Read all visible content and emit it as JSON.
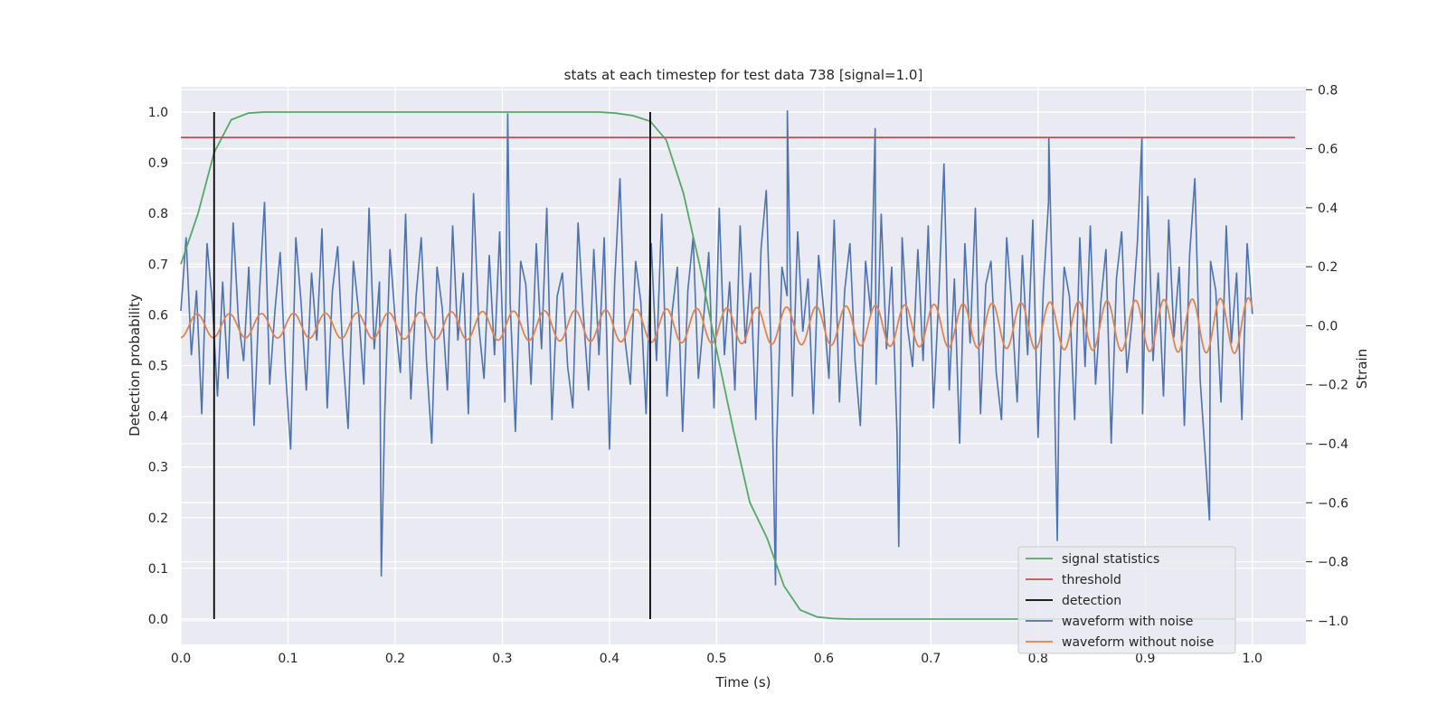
{
  "chart_data": {
    "type": "line",
    "title": "stats at each timestep for test data 738 [signal=1.0]",
    "xlabel": "Time (s)",
    "ylabel_left": "Detection probability",
    "ylabel_right": "Strain",
    "xlim": [
      0.0,
      1.05
    ],
    "ylim_left": [
      -0.05,
      1.05
    ],
    "ylim_right": [
      -1.08,
      0.81
    ],
    "x_ticks": [
      "0.0",
      "0.1",
      "0.2",
      "0.3",
      "0.4",
      "0.5",
      "0.6",
      "0.7",
      "0.8",
      "0.9",
      "1.0"
    ],
    "y_left_ticks": [
      "0.0",
      "0.1",
      "0.2",
      "0.3",
      "0.4",
      "0.5",
      "0.6",
      "0.7",
      "0.8",
      "0.9",
      "1.0"
    ],
    "y_right_ticks": [
      "−1.0",
      "−0.8",
      "−0.6",
      "−0.4",
      "−0.2",
      "0.0",
      "0.2",
      "0.4",
      "0.6",
      "0.8"
    ],
    "grid": true,
    "legend_position": "lower-right",
    "series": [
      {
        "name": "signal statistics",
        "axis": "left",
        "color": "#55a868",
        "x": [
          0.0,
          0.016,
          0.031,
          0.047,
          0.063,
          0.078,
          0.094,
          0.2,
          0.3,
          0.375,
          0.39,
          0.406,
          0.422,
          0.438,
          0.453,
          0.469,
          0.484,
          0.5,
          0.516,
          0.531,
          0.547,
          0.563,
          0.578,
          0.594,
          0.609,
          0.625,
          0.7,
          0.8,
          0.9,
          0.984
        ],
        "y": [
          0.7,
          0.8,
          0.92,
          0.985,
          0.998,
          1.0,
          1.0,
          1.0,
          1.0,
          1.0,
          1.0,
          0.998,
          0.993,
          0.982,
          0.945,
          0.84,
          0.7,
          0.53,
          0.37,
          0.23,
          0.16,
          0.065,
          0.018,
          0.004,
          0.001,
          0.0,
          0.0,
          0.0,
          0.0,
          0.0
        ]
      },
      {
        "name": "threshold",
        "axis": "left",
        "color": "#c44e52",
        "x": [
          0.0,
          1.04
        ],
        "y": [
          0.95,
          0.95
        ]
      },
      {
        "name": "detection",
        "axis": "left",
        "color": "#000000",
        "segments": [
          {
            "x": 0.031,
            "y": [
              0.0,
              1.0
            ]
          },
          {
            "x": 0.438,
            "y": [
              0.0,
              1.0
            ]
          }
        ]
      },
      {
        "name": "waveform with noise",
        "axis": "right",
        "color": "#4c72b0",
        "x_start": 0.0,
        "x_end": 1.0,
        "y": [
          0.05,
          0.3,
          -0.1,
          0.12,
          -0.3,
          0.28,
          0.08,
          -0.24,
          0.15,
          -0.18,
          0.35,
          0.02,
          -0.12,
          0.2,
          -0.34,
          0.1,
          0.42,
          -0.2,
          0.05,
          0.25,
          -0.15,
          -0.42,
          0.3,
          0.08,
          -0.22,
          0.18,
          -0.05,
          0.33,
          -0.28,
          0.12,
          0.27,
          -0.1,
          -0.35,
          0.22,
          0.05,
          -0.2,
          0.4,
          -0.08,
          0.15,
          -0.3,
          0.26,
          0.02,
          -0.16,
          0.38,
          -0.25,
          0.1,
          0.3,
          -0.12,
          -0.4,
          0.2,
          0.06,
          -0.22,
          0.34,
          -0.05,
          0.18,
          -0.3,
          0.45,
          0.0,
          -0.18,
          0.24,
          -0.1,
          0.32,
          -0.26,
          0.08,
          -0.36,
          0.22,
          0.14,
          -0.2,
          0.28,
          -0.08,
          0.4,
          -0.32,
          0.1,
          0.18,
          -0.14,
          -0.28,
          0.35,
          0.04,
          -0.22,
          0.26,
          -0.1,
          0.3,
          -0.42,
          0.15,
          0.5,
          -0.05,
          -0.2,
          0.22,
          0.08,
          -0.3,
          0.28,
          -0.12,
          0.38,
          -0.24,
          0.05,
          0.2,
          -0.36,
          0.12,
          0.3,
          -0.18,
          0.02,
          0.25,
          -0.28,
          0.4,
          -0.1,
          0.15,
          -0.22,
          0.34,
          -0.06,
          0.18,
          -0.32,
          0.26,
          0.46,
          -0.14,
          -0.4,
          0.2,
          0.1,
          -0.24,
          0.32,
          -0.02,
          0.16,
          -0.3,
          0.24,
          0.05,
          -0.18,
          0.36,
          -0.26,
          0.12,
          0.28,
          -0.12,
          -0.34,
          0.22,
          0.04,
          -0.2,
          0.38,
          -0.08,
          0.2,
          -0.36,
          0.3,
          0.0,
          -0.14,
          0.26,
          -0.12,
          0.34,
          -0.28,
          0.1,
          0.55,
          -0.22,
          0.16,
          -0.4,
          0.28,
          -0.06,
          0.4,
          -0.3,
          0.14,
          0.22,
          -0.16,
          -0.32,
          0.3,
          0.06,
          -0.26,
          0.24,
          -0.1,
          0.36,
          -0.38,
          0.12,
          0.42,
          -0.08,
          -0.24,
          0.2,
          0.1,
          -0.32,
          0.3,
          -0.14,
          0.34,
          -0.2,
          0.08,
          0.26,
          -0.4,
          0.16,
          0.32,
          -0.16,
          0.02,
          0.28,
          -0.3,
          0.44,
          -0.12,
          0.18,
          -0.24,
          0.36,
          -0.04,
          0.2,
          -0.34,
          0.24,
          0.5,
          -0.18,
          -0.44,
          0.22,
          0.12,
          -0.26,
          0.34,
          -0.06,
          0.18,
          -0.32,
          0.28,
          0.04
        ],
        "spikes": [
          {
            "x": 0.187,
            "y": -0.85
          },
          {
            "x": 0.305,
            "y": 0.72
          },
          {
            "x": 0.555,
            "y": -0.88
          },
          {
            "x": 0.566,
            "y": 0.73
          },
          {
            "x": 0.648,
            "y": 0.67
          },
          {
            "x": 0.67,
            "y": -0.75
          },
          {
            "x": 0.81,
            "y": 0.64
          },
          {
            "x": 0.818,
            "y": -0.73
          },
          {
            "x": 0.897,
            "y": 0.64
          },
          {
            "x": 0.96,
            "y": -0.66
          }
        ]
      },
      {
        "name": "waveform without noise",
        "axis": "right",
        "color": "#dd8452",
        "x_start": 0.0,
        "x_end": 1.0,
        "amplitude_start": 0.04,
        "amplitude_end": 0.095,
        "cycles": 33
      }
    ]
  }
}
